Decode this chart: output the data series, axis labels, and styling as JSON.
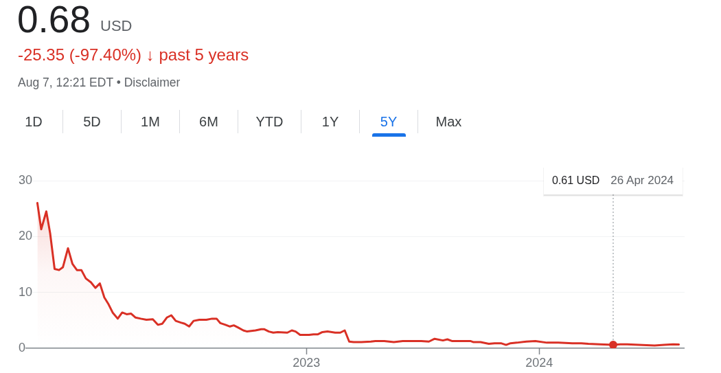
{
  "chart_data": {
    "type": "area",
    "title": "0.68",
    "subtitle": "-25.35 (-97.40%) ↓ past 5 years",
    "annotations": [
      "USD",
      "Aug 7, 12:21 EDT • Disclaimer",
      "0.61 USD",
      "1D",
      "5D",
      "1M",
      "6M",
      "YTD",
      "1Y",
      "5Y",
      "Max"
    ],
    "series": [
      {
        "color": "#d93025",
        "x": [
          "2021-11-05",
          "2021-11-11",
          "2021-11-19",
          "2021-11-25",
          "2021-12-02",
          "2021-12-09",
          "2021-12-15",
          "2021-12-23",
          "2021-12-30",
          "2022-01-06",
          "2022-01-13",
          "2022-01-20",
          "2022-01-28",
          "2022-02-04",
          "2022-02-11",
          "2022-02-18",
          "2022-02-24",
          "2022-03-03",
          "2022-03-11",
          "2022-03-18",
          "2022-03-25",
          "2022-04-01",
          "2022-04-08",
          "2022-04-16",
          "2022-04-25",
          "2022-05-05",
          "2022-05-13",
          "2022-05-20",
          "2022-05-27",
          "2022-06-03",
          "2022-06-10",
          "2022-06-18",
          "2022-06-24",
          "2022-07-01",
          "2022-07-08",
          "2022-07-17",
          "2022-07-28",
          "2022-08-06",
          "2022-08-13",
          "2022-08-19",
          "2022-08-27",
          "2022-09-03",
          "2022-09-09",
          "2022-09-16",
          "2022-09-24",
          "2022-09-30",
          "2022-10-13",
          "2022-10-22",
          "2022-10-27",
          "2022-11-03",
          "2022-11-10",
          "2022-11-17",
          "2022-12-02",
          "2022-12-09",
          "2022-12-15",
          "2022-12-22",
          "2023-01-05",
          "2023-01-12",
          "2023-01-19",
          "2023-01-26",
          "2023-02-03",
          "2023-02-15",
          "2023-02-23",
          "2023-03-02",
          "2023-03-09",
          "2023-03-16",
          "2023-03-28",
          "2023-04-12",
          "2023-04-19",
          "2023-05-03",
          "2023-05-18",
          "2023-06-01",
          "2023-06-15",
          "2023-06-30",
          "2023-07-12",
          "2023-07-21",
          "2023-08-03",
          "2023-08-10",
          "2023-08-17",
          "2023-09-02",
          "2023-09-15",
          "2023-09-20",
          "2023-10-01",
          "2023-10-14",
          "2023-10-23",
          "2023-11-02",
          "2023-11-10",
          "2023-11-17",
          "2023-11-27",
          "2023-12-12",
          "2023-12-26",
          "2024-01-13",
          "2024-01-31",
          "2024-02-22",
          "2024-03-07",
          "2024-03-18",
          "2024-04-05",
          "2024-04-26",
          "2024-05-07",
          "2024-05-18",
          "2024-06-05",
          "2024-06-30",
          "2024-07-15",
          "2024-07-29",
          "2024-08-07"
        ],
        "values": [
          26.0,
          21.3,
          24.5,
          20.6,
          14.2,
          14.0,
          14.5,
          17.9,
          15.1,
          14.0,
          14.0,
          12.5,
          11.8,
          10.8,
          11.6,
          9.1,
          8.0,
          6.4,
          5.3,
          6.4,
          6.1,
          6.2,
          5.5,
          5.3,
          5.1,
          5.2,
          4.2,
          4.4,
          5.5,
          5.9,
          4.9,
          4.6,
          4.4,
          3.9,
          4.9,
          5.1,
          5.1,
          5.3,
          5.3,
          4.5,
          4.2,
          3.9,
          4.1,
          3.7,
          3.2,
          3.0,
          3.2,
          3.4,
          3.4,
          3.0,
          2.8,
          2.9,
          2.8,
          3.2,
          3.0,
          2.4,
          2.4,
          2.5,
          2.5,
          2.9,
          3.0,
          2.8,
          2.8,
          3.2,
          1.2,
          1.1,
          1.1,
          1.2,
          1.3,
          1.3,
          1.1,
          1.3,
          1.3,
          1.3,
          1.2,
          1.7,
          1.4,
          1.6,
          1.3,
          1.3,
          1.3,
          1.1,
          1.1,
          0.8,
          0.9,
          0.9,
          0.6,
          0.9,
          1.0,
          1.2,
          1.3,
          1.0,
          1.0,
          0.9,
          0.9,
          0.8,
          0.7,
          0.61,
          0.7,
          0.7,
          0.6,
          0.5,
          0.6,
          0.7,
          0.68
        ]
      },
      {
        "type": "scatter",
        "color": "#d93025",
        "marker": "circle",
        "x": [
          "2024-04-26"
        ],
        "values": [
          0.61
        ]
      }
    ],
    "line_style": "solid",
    "xlim": [
      "2021-10-28",
      "2024-08-16"
    ],
    "xticks": [
      "2023",
      "2024"
    ],
    "ylim": [
      0,
      30
    ],
    "yticks": [
      0,
      10,
      20,
      30
    ],
    "grid": "y",
    "legend": false,
    "ref_lines": [
      {
        "axis": "x",
        "value": "2024-04-26",
        "label": "26 Apr 2024",
        "line_style": "dotted",
        "color": "#9aa0a6"
      }
    ]
  }
}
